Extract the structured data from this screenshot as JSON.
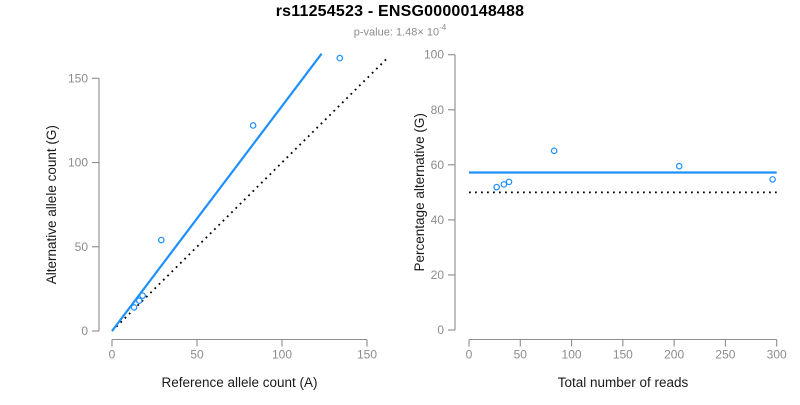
{
  "header": {
    "title": "rs11254523 - ENSG00000148488",
    "subtitle_base": "p-value: 1.48× 10",
    "subtitle_exponent": "-4"
  },
  "style": {
    "accent": "#1E90FF",
    "dotted_line": "#000000",
    "axis": "#8C8C8C",
    "tick_label": "#8C8C8C",
    "axis_title": "#1A1A1A",
    "subtitle": "#8C8C8C",
    "background": "#FFFFFF",
    "point_fill": "#FFFFFF"
  },
  "chart_data": [
    {
      "type": "scatter",
      "title": "",
      "xlabel": "Reference allele count (A)",
      "ylabel": "Alternative allele count (G)",
      "xticks": [
        0,
        50,
        100,
        150
      ],
      "yticks": [
        0,
        50,
        100,
        150
      ],
      "xlim": [
        0,
        163
      ],
      "ylim": [
        0,
        165
      ],
      "grid": false,
      "points": [
        [
          13,
          14
        ],
        [
          16,
          18
        ],
        [
          18,
          21
        ],
        [
          29,
          54
        ],
        [
          83,
          122
        ],
        [
          134,
          162
        ]
      ],
      "lines": [
        {
          "name": "identity-line",
          "slope": 1,
          "intercept": 0,
          "x_range": [
            0,
            162
          ],
          "style": "dotted",
          "color": "#000000"
        },
        {
          "name": "fit-line",
          "slope": 1.335,
          "intercept": 0,
          "x_range": [
            0,
            123.3
          ],
          "style": "solid",
          "color": "#1E90FF"
        }
      ]
    },
    {
      "type": "scatter",
      "title": "",
      "xlabel": "Total number of reads",
      "ylabel": "Percentage alternative (G)",
      "xticks": [
        0,
        50,
        100,
        150,
        200,
        250,
        300
      ],
      "yticks": [
        0,
        20,
        40,
        60,
        80,
        100
      ],
      "xlim": [
        0,
        300
      ],
      "ylim": [
        0,
        100
      ],
      "grid": false,
      "points": [
        [
          27,
          51.9
        ],
        [
          34,
          52.9
        ],
        [
          39,
          53.8
        ],
        [
          83,
          65.1
        ],
        [
          205,
          59.5
        ],
        [
          296,
          54.7
        ]
      ],
      "lines": [
        {
          "name": "expected-line",
          "y": 50,
          "x_range": [
            0,
            300
          ],
          "style": "dotted",
          "color": "#000000"
        },
        {
          "name": "fit-line",
          "y": 57.2,
          "x_range": [
            0,
            300
          ],
          "style": "solid",
          "color": "#1E90FF"
        }
      ]
    }
  ]
}
